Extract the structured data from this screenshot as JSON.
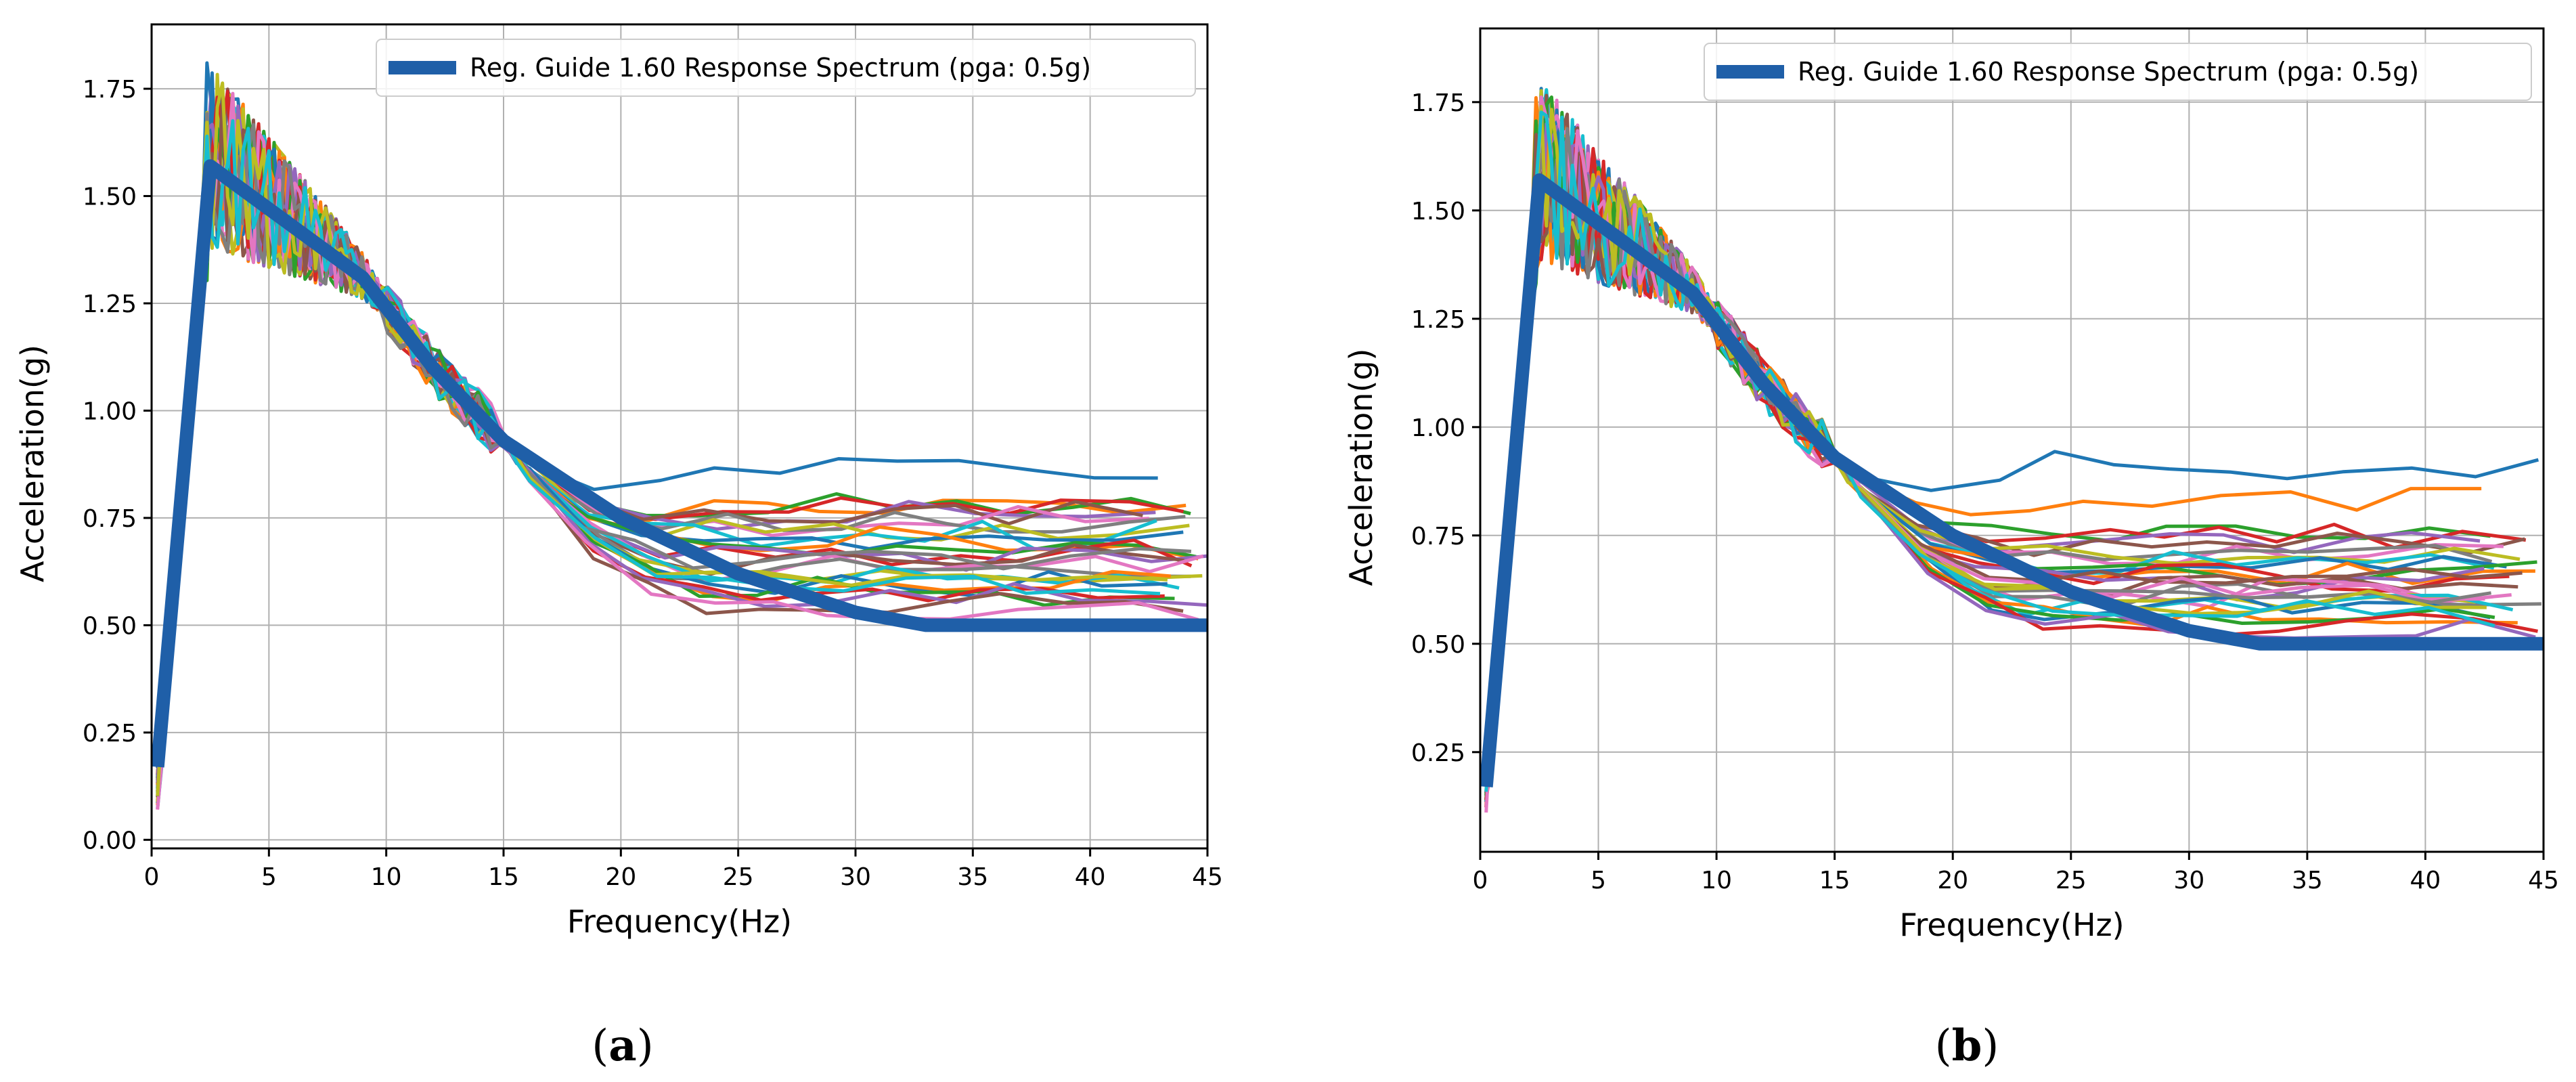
{
  "chart_data": [
    {
      "type": "line",
      "caption_open": "(",
      "caption_letter": "a",
      "caption_close": ")",
      "xlabel": "Frequency(Hz)",
      "ylabel": "Acceleration(g)",
      "xlim": [
        0,
        45
      ],
      "ylim": [
        -0.02,
        1.9
      ],
      "xticks": [
        0,
        5,
        10,
        15,
        20,
        25,
        30,
        35,
        40,
        45
      ],
      "xtick_labels": [
        "0",
        "5",
        "10",
        "15",
        "20",
        "25",
        "30",
        "35",
        "40",
        "45"
      ],
      "yticks": [
        0.0,
        0.25,
        0.5,
        0.75,
        1.0,
        1.25,
        1.5,
        1.75
      ],
      "ytick_labels": [
        "0.00",
        "0.25",
        "0.50",
        "0.75",
        "1.00",
        "1.25",
        "1.50",
        "1.75"
      ],
      "grid": true,
      "legend_position": "top-right",
      "legend": "Reg. Guide 1.60 Response Spectrum (pga: 0.5g)",
      "reference_series": {
        "name": "Reg. Guide 1.60 Response Spectrum (pga: 0.5g)",
        "color": "#1f5fa8",
        "x": [
          0.25,
          2.5,
          9.0,
          12,
          15,
          20,
          25,
          30,
          33,
          45
        ],
        "y": [
          0.17,
          1.57,
          1.31,
          1.1,
          0.93,
          0.75,
          0.62,
          0.53,
          0.5,
          0.5
        ]
      },
      "ensemble": {
        "count": 30,
        "colors": [
          "#1f77b4",
          "#ff7f0e",
          "#2ca02c",
          "#d62728",
          "#9467bd",
          "#8c564b",
          "#e377c2",
          "#7f7f7f",
          "#bcbd22",
          "#17becf"
        ],
        "tail_levels": [
          0.86,
          0.79,
          0.78,
          0.77,
          0.76,
          0.75,
          0.74,
          0.73,
          0.72,
          0.71,
          0.7,
          0.69,
          0.68,
          0.67,
          0.66,
          0.65,
          0.64,
          0.63,
          0.62,
          0.61,
          0.6,
          0.59,
          0.58,
          0.57,
          0.56,
          0.55,
          0.54,
          0.66,
          0.62,
          0.6
        ],
        "peak_levels": [
          1.81,
          1.75,
          1.72,
          1.7,
          1.68,
          1.66,
          1.65,
          1.63,
          1.62,
          1.6,
          1.58,
          1.57,
          1.56,
          1.55,
          1.54,
          1.53,
          1.52,
          1.51,
          1.5,
          1.49,
          1.48,
          1.47,
          1.46,
          1.45,
          1.44,
          1.43,
          1.42,
          1.41,
          1.4,
          1.39
        ],
        "start_level": 0.07
      }
    },
    {
      "type": "line",
      "caption_open": "(",
      "caption_letter": "b",
      "caption_close": ")",
      "xlabel": "Frequency(Hz)",
      "ylabel": "Acceleration(g)",
      "xlim": [
        0,
        45
      ],
      "ylim": [
        0.02,
        1.92
      ],
      "xticks": [
        0,
        5,
        10,
        15,
        20,
        25,
        30,
        35,
        40,
        45
      ],
      "xtick_labels": [
        "0",
        "5",
        "10",
        "15",
        "20",
        "25",
        "30",
        "35",
        "40",
        "45"
      ],
      "yticks": [
        0.25,
        0.5,
        0.75,
        1.0,
        1.25,
        1.5,
        1.75
      ],
      "ytick_labels": [
        "0.25",
        "0.50",
        "0.75",
        "1.00",
        "1.25",
        "1.50",
        "1.75"
      ],
      "grid": true,
      "legend_position": "top-right",
      "legend": "Reg. Guide 1.60 Response Spectrum (pga: 0.5g)",
      "reference_series": {
        "name": "Reg. Guide 1.60 Response Spectrum (pga: 0.5g)",
        "color": "#1f5fa8",
        "x": [
          0.25,
          2.5,
          9.0,
          12,
          15,
          20,
          25,
          30,
          33,
          45
        ],
        "y": [
          0.17,
          1.57,
          1.31,
          1.1,
          0.93,
          0.75,
          0.62,
          0.53,
          0.5,
          0.5
        ]
      },
      "ensemble": {
        "count": 30,
        "colors": [
          "#1f77b4",
          "#ff7f0e",
          "#2ca02c",
          "#d62728",
          "#9467bd",
          "#8c564b",
          "#e377c2",
          "#7f7f7f",
          "#bcbd22",
          "#17becf"
        ],
        "tail_levels": [
          0.91,
          0.83,
          0.76,
          0.75,
          0.74,
          0.73,
          0.72,
          0.71,
          0.7,
          0.69,
          0.68,
          0.67,
          0.66,
          0.65,
          0.64,
          0.63,
          0.62,
          0.61,
          0.6,
          0.59,
          0.58,
          0.57,
          0.56,
          0.55,
          0.54,
          0.67,
          0.63,
          0.61,
          0.6,
          0.58
        ],
        "peak_levels": [
          1.83,
          1.76,
          1.72,
          1.7,
          1.68,
          1.66,
          1.64,
          1.62,
          1.61,
          1.6,
          1.58,
          1.57,
          1.56,
          1.55,
          1.54,
          1.53,
          1.52,
          1.51,
          1.5,
          1.49,
          1.48,
          1.47,
          1.46,
          1.45,
          1.44,
          1.43,
          1.42,
          1.41,
          1.4,
          1.39
        ],
        "start_level": 0.1
      }
    }
  ]
}
